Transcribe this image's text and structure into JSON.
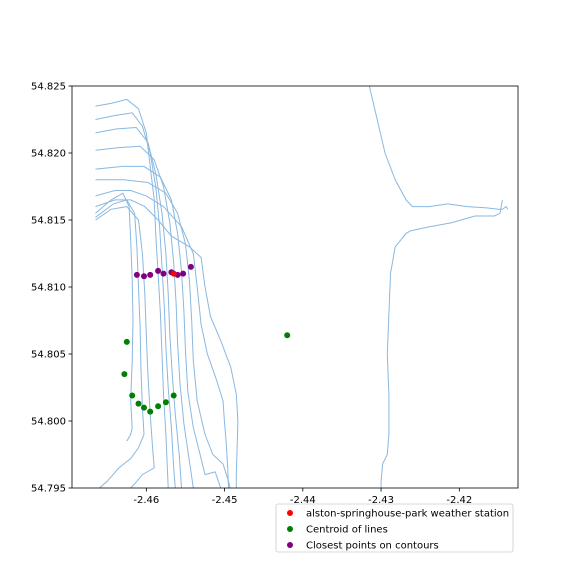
{
  "chart_data": {
    "type": "scatter",
    "title": "",
    "xlabel": "",
    "ylabel": "",
    "xlim": [
      -2.4695,
      -2.4125
    ],
    "ylim": [
      54.795,
      54.825
    ],
    "grid": false,
    "legend_position": "bottom-right (outside axes)",
    "xticks": [
      -2.46,
      -2.45,
      -2.44,
      -2.43,
      -2.42
    ],
    "xtick_labels": [
      "-2.46",
      "-2.45",
      "-2.44",
      "-2.43",
      "-2.42"
    ],
    "yticks": [
      54.795,
      54.8,
      54.805,
      54.81,
      54.815,
      54.82,
      54.825
    ],
    "ytick_labels": [
      "54.795",
      "54.800",
      "54.805",
      "54.810",
      "54.815",
      "54.820",
      "54.825"
    ],
    "contour_color": "#8ab8e0",
    "contours": [
      [
        [
          -2.4665,
          54.8235
        ],
        [
          -2.4645,
          54.8237
        ],
        [
          -2.4625,
          54.824
        ],
        [
          -2.461,
          54.8233
        ],
        [
          -2.46,
          54.8215
        ],
        [
          -2.4595,
          54.819
        ],
        [
          -2.459,
          54.8165
        ],
        [
          -2.4588,
          54.814
        ],
        [
          -2.4585,
          54.811
        ],
        [
          -2.4582,
          54.808
        ],
        [
          -2.458,
          54.805
        ],
        [
          -2.4578,
          54.802
        ],
        [
          -2.4575,
          54.799
        ],
        [
          -2.4572,
          54.795
        ]
      ],
      [
        [
          -2.4665,
          54.8225
        ],
        [
          -2.464,
          54.8228
        ],
        [
          -2.4618,
          54.823
        ],
        [
          -2.4605,
          54.822
        ],
        [
          -2.4595,
          54.82
        ],
        [
          -2.4588,
          54.8175
        ],
        [
          -2.4583,
          54.8145
        ],
        [
          -2.458,
          54.8115
        ],
        [
          -2.4577,
          54.8085
        ],
        [
          -2.4575,
          54.8055
        ],
        [
          -2.4572,
          54.8025
        ],
        [
          -2.4568,
          54.7995
        ],
        [
          -2.4565,
          54.7965
        ],
        [
          -2.4563,
          54.795
        ]
      ],
      [
        [
          -2.4665,
          54.8215
        ],
        [
          -2.4638,
          54.8218
        ],
        [
          -2.4613,
          54.8219
        ],
        [
          -2.4598,
          54.8208
        ],
        [
          -2.4588,
          54.8185
        ],
        [
          -2.458,
          54.8155
        ],
        [
          -2.4575,
          54.8125
        ],
        [
          -2.4572,
          54.8095
        ],
        [
          -2.457,
          54.8065
        ],
        [
          -2.4567,
          54.8035
        ],
        [
          -2.4563,
          54.8005
        ],
        [
          -2.4558,
          54.7975
        ],
        [
          -2.4555,
          54.795
        ]
      ],
      [
        [
          -2.4665,
          54.8202
        ],
        [
          -2.4635,
          54.8204
        ],
        [
          -2.4608,
          54.8205
        ],
        [
          -2.459,
          54.8195
        ],
        [
          -2.4578,
          54.8175
        ],
        [
          -2.457,
          54.8148
        ],
        [
          -2.4565,
          54.8118
        ],
        [
          -2.4562,
          54.8088
        ],
        [
          -2.456,
          54.8058
        ],
        [
          -2.4557,
          54.8028
        ],
        [
          -2.4552,
          54.7998
        ],
        [
          -2.4545,
          54.797
        ],
        [
          -2.454,
          54.795
        ]
      ],
      [
        [
          -2.4665,
          54.8188
        ],
        [
          -2.463,
          54.819
        ],
        [
          -2.4603,
          54.819
        ],
        [
          -2.4582,
          54.8182
        ],
        [
          -2.4568,
          54.8165
        ],
        [
          -2.456,
          54.814
        ],
        [
          -2.4555,
          54.8112
        ],
        [
          -2.4552,
          54.8082
        ],
        [
          -2.455,
          54.8052
        ],
        [
          -2.4547,
          54.8022
        ],
        [
          -2.454,
          54.7995
        ],
        [
          -2.453,
          54.7972
        ],
        [
          -2.4525,
          54.796
        ],
        [
          -2.4512,
          54.7962
        ],
        [
          -2.4505,
          54.795
        ]
      ],
      [
        [
          -2.4665,
          54.818
        ],
        [
          -2.4628,
          54.818
        ],
        [
          -2.4598,
          54.8178
        ],
        [
          -2.4575,
          54.817
        ],
        [
          -2.456,
          54.8155
        ],
        [
          -2.455,
          54.8132
        ],
        [
          -2.4545,
          54.8105
        ],
        [
          -2.4542,
          54.8075
        ],
        [
          -2.454,
          54.8045
        ],
        [
          -2.4535,
          54.8015
        ],
        [
          -2.4525,
          54.799
        ],
        [
          -2.4515,
          54.7975
        ],
        [
          -2.4502,
          54.7968
        ],
        [
          -2.4495,
          54.7955
        ],
        [
          -2.4493,
          54.795
        ]
      ],
      [
        [
          -2.4665,
          54.8168
        ],
        [
          -2.464,
          54.8172
        ],
        [
          -2.462,
          54.8172
        ],
        [
          -2.46,
          54.8168
        ],
        [
          -2.4578,
          54.816
        ],
        [
          -2.4555,
          54.8145
        ],
        [
          -2.454,
          54.8125
        ],
        [
          -2.4535,
          54.81
        ],
        [
          -2.453,
          54.8072
        ],
        [
          -2.4522,
          54.805
        ],
        [
          -2.451,
          54.803
        ],
        [
          -2.4502,
          54.8015
        ],
        [
          -2.45,
          54.7998
        ],
        [
          -2.4498,
          54.7985
        ],
        [
          -2.4496,
          54.7965
        ],
        [
          -2.4495,
          54.795
        ]
      ],
      [
        [
          -2.4665,
          54.816
        ],
        [
          -2.464,
          54.8165
        ],
        [
          -2.462,
          54.8165
        ],
        [
          -2.4602,
          54.816
        ],
        [
          -2.4585,
          54.815
        ],
        [
          -2.4568,
          54.8138
        ],
        [
          -2.4545,
          54.813
        ],
        [
          -2.453,
          54.8122
        ],
        [
          -2.4525,
          54.81
        ],
        [
          -2.4518,
          54.8078
        ],
        [
          -2.4505,
          54.806
        ],
        [
          -2.4492,
          54.804
        ],
        [
          -2.4485,
          54.802
        ],
        [
          -2.4483,
          54.8
        ],
        [
          -2.4484,
          54.798
        ],
        [
          -2.4485,
          54.796
        ],
        [
          -2.4485,
          54.795
        ]
      ],
      [
        [
          -2.4665,
          54.815
        ],
        [
          -2.4645,
          54.8158
        ],
        [
          -2.4625,
          54.816
        ],
        [
          -2.461,
          54.815
        ],
        [
          -2.4605,
          54.8125
        ],
        [
          -2.4602,
          54.8095
        ],
        [
          -2.46,
          54.8065
        ],
        [
          -2.4598,
          54.8035
        ],
        [
          -2.4595,
          54.8005
        ],
        [
          -2.4592,
          54.798
        ],
        [
          -2.459,
          54.7965
        ],
        [
          -2.4605,
          54.796
        ],
        [
          -2.4612,
          54.7955
        ],
        [
          -2.462,
          54.795
        ]
      ],
      [
        [
          -2.4665,
          54.8152
        ],
        [
          -2.4642,
          54.8162
        ],
        [
          -2.4625,
          54.8165
        ],
        [
          -2.4615,
          54.8155
        ],
        [
          -2.4612,
          54.813
        ],
        [
          -2.461,
          54.81
        ],
        [
          -2.4608,
          54.807
        ],
        [
          -2.4607,
          54.804
        ],
        [
          -2.4605,
          54.801
        ],
        [
          -2.4603,
          54.799
        ],
        [
          -2.461,
          54.798
        ],
        [
          -2.462,
          54.7972
        ],
        [
          -2.4635,
          54.7965
        ],
        [
          -2.465,
          54.7955
        ],
        [
          -2.466,
          54.795
        ]
      ],
      [
        [
          -2.4665,
          54.8155
        ],
        [
          -2.4645,
          54.8165
        ],
        [
          -2.463,
          54.817
        ],
        [
          -2.4622,
          54.816
        ],
        [
          -2.462,
          54.8135
        ],
        [
          -2.4618,
          54.8105
        ],
        [
          -2.4617,
          54.8075
        ],
        [
          -2.4618,
          54.8045
        ],
        [
          -2.462,
          54.8015
        ],
        [
          -2.4618,
          54.7995
        ],
        [
          -2.462,
          54.799
        ],
        [
          -2.4625,
          54.7985
        ]
      ],
      [
        [
          -2.4315,
          54.825
        ],
        [
          -2.4305,
          54.8225
        ],
        [
          -2.4295,
          54.82
        ],
        [
          -2.4282,
          54.818
        ],
        [
          -2.4268,
          54.8165
        ],
        [
          -2.426,
          54.816
        ],
        [
          -2.4238,
          54.816
        ],
        [
          -2.4215,
          54.8162
        ],
        [
          -2.419,
          54.816
        ],
        [
          -2.4165,
          54.8159
        ],
        [
          -2.415,
          54.8158
        ],
        [
          -2.4145,
          54.8158
        ],
        [
          -2.414,
          54.816
        ],
        [
          -2.4138,
          54.8158
        ]
      ],
      [
        [
          -2.4145,
          54.8165
        ],
        [
          -2.4148,
          54.8155
        ],
        [
          -2.4155,
          54.8153
        ],
        [
          -2.418,
          54.8153
        ],
        [
          -2.421,
          54.8148
        ],
        [
          -2.4238,
          54.8145
        ],
        [
          -2.4262,
          54.8142
        ],
        [
          -2.4268,
          54.814
        ],
        [
          -2.4282,
          54.813
        ],
        [
          -2.4288,
          54.811
        ],
        [
          -2.429,
          54.808
        ],
        [
          -2.4292,
          54.805
        ],
        [
          -2.429,
          54.802
        ],
        [
          -2.429,
          54.799
        ],
        [
          -2.4292,
          54.7975
        ],
        [
          -2.4298,
          54.7968
        ],
        [
          -2.43,
          54.7955
        ],
        [
          -2.43,
          54.795
        ]
      ]
    ],
    "series": [
      {
        "name": "alston-springhouse-park weather station",
        "color": "#ff0000",
        "points": [
          [
            -2.4565,
            54.811
          ]
        ]
      },
      {
        "name": "Centroid of lines",
        "color": "#008000",
        "points": [
          [
            -2.442,
            54.8064
          ],
          [
            -2.4625,
            54.8059
          ],
          [
            -2.4628,
            54.8035
          ],
          [
            -2.4618,
            54.8019
          ],
          [
            -2.461,
            54.8013
          ],
          [
            -2.4603,
            54.801
          ],
          [
            -2.4595,
            54.8007
          ],
          [
            -2.4585,
            54.8011
          ],
          [
            -2.4575,
            54.8014
          ],
          [
            -2.4565,
            54.8019
          ]
        ]
      },
      {
        "name": "Closest points on contours",
        "color": "#800080",
        "points": [
          [
            -2.4612,
            54.8109
          ],
          [
            -2.4603,
            54.8108
          ],
          [
            -2.4595,
            54.8109
          ],
          [
            -2.4585,
            54.8112
          ],
          [
            -2.4578,
            54.811
          ],
          [
            -2.4568,
            54.8111
          ],
          [
            -2.456,
            54.8109
          ],
          [
            -2.4553,
            54.811
          ],
          [
            -2.4543,
            54.8115
          ]
        ]
      }
    ]
  }
}
